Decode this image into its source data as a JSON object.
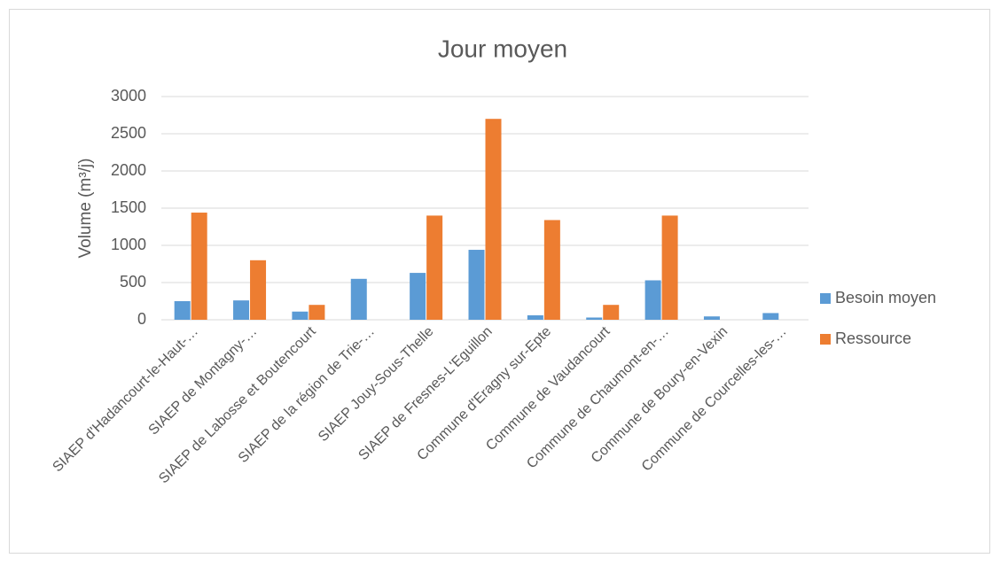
{
  "chart_data": {
    "type": "bar",
    "title": "Jour moyen",
    "y_label": "Volume (m³/j)",
    "categories": [
      "SIAEP d'Hadancourt-le-Haut-…",
      "SIAEP de Montagny-…",
      "SIAEP de Labosse et Boutencourt",
      "SIAEP de la région de Trie-…",
      "SIAEP Jouy-Sous-Thelle",
      "SIAEP de Fresnes-L'Eguillon",
      "Commune d'Eragny sur-Epte",
      "Commune de Vaudancourt",
      "Commune de Chaumont-en-…",
      "Commune de Boury-en-Vexin",
      "Commune de Courcelles-les-…"
    ],
    "series": [
      {
        "name": "Besoin moyen",
        "color": "#5b9bd5",
        "values": [
          250,
          260,
          110,
          550,
          630,
          940,
          60,
          30,
          530,
          45,
          90
        ]
      },
      {
        "name": "Ressource",
        "color": "#ed7d31",
        "values": [
          1440,
          800,
          200,
          null,
          1400,
          2700,
          1340,
          200,
          1400,
          null,
          null
        ]
      }
    ],
    "ylim": [
      0,
      3000
    ],
    "yticks": [
      0,
      500,
      1000,
      1500,
      2000,
      2500,
      3000
    ],
    "grid": true,
    "legend": "right"
  }
}
